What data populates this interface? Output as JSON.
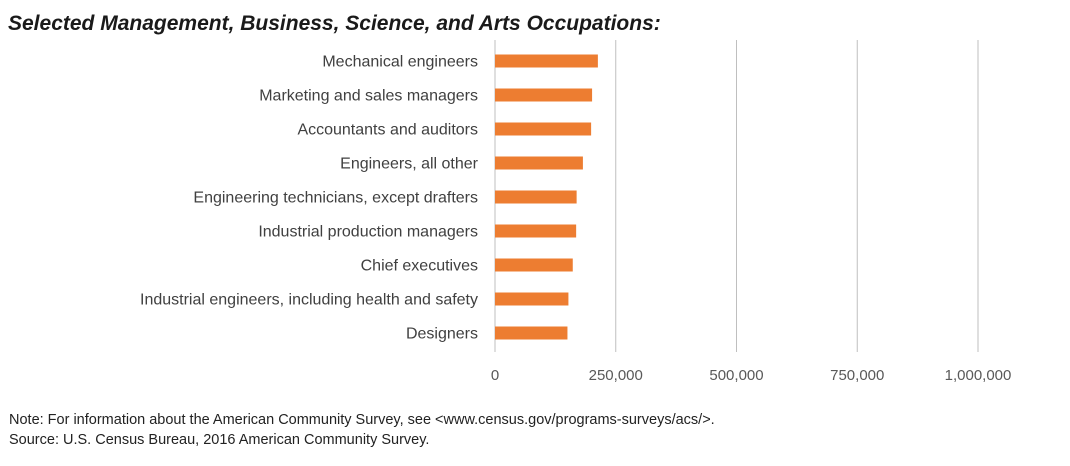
{
  "title": "Selected Management, Business, Science, and Arts Occupations:",
  "notes": {
    "note": "Note: For information about the American Community Survey, see <www.census.gov/programs-surveys/acs/>.",
    "source": "Source: U.S. Census Bureau, 2016 American Community Survey."
  },
  "colors": {
    "bar": "#ED7D31",
    "grid": "#BFBFBF",
    "axis_text": "#595959"
  },
  "chart_data": {
    "type": "bar",
    "orientation": "horizontal",
    "title": "Selected Management, Business, Science, and Arts Occupations:",
    "categories": [
      "Mechanical engineers",
      "Marketing and sales managers",
      "Accountants and auditors",
      "Engineers, all other",
      "Engineering technicians, except drafters",
      "Industrial production managers",
      "Chief executives",
      "Industrial engineers, including health and safety",
      "Designers"
    ],
    "values": [
      213000,
      201000,
      199000,
      182000,
      169000,
      168000,
      161000,
      152000,
      150000
    ],
    "xlim": [
      0,
      1000000
    ],
    "xticks": [
      0,
      250000,
      500000,
      750000,
      1000000
    ],
    "xtick_labels": [
      "0",
      "250,000",
      "500,000",
      "750,000",
      "1,000,000"
    ],
    "grid": true,
    "legend": "none"
  }
}
